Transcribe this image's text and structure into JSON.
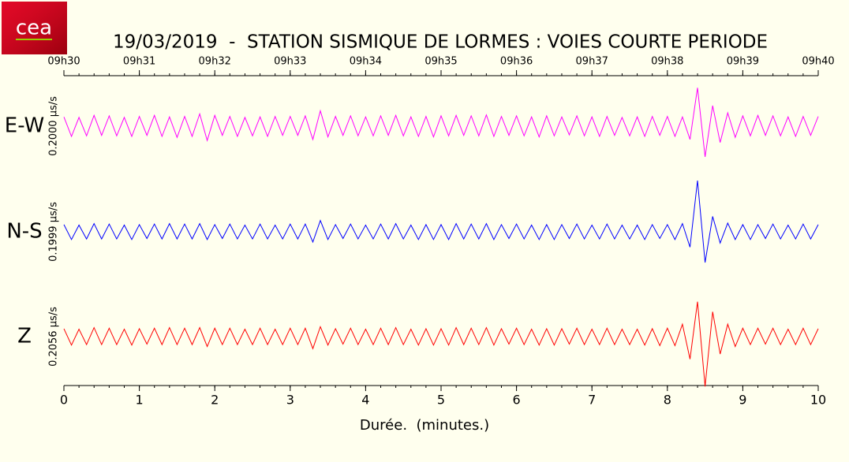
{
  "logo": "cea",
  "chart_data": {
    "type": "seismogram",
    "title": "19/03/2019  -  STATION SISMIQUE DE LORMES : VOIES COURTE PERIODE",
    "xlabel": "Durée.  (minutes.)",
    "xlim": [
      0,
      10
    ],
    "xticks": [
      0,
      1,
      2,
      3,
      4,
      5,
      6,
      7,
      8,
      9,
      10
    ],
    "xminor_step": 0.2,
    "top_ticks": [
      {
        "value": 0,
        "label": "09h30"
      },
      {
        "value": 1,
        "label": "09h31"
      },
      {
        "value": 2,
        "label": "09h32"
      },
      {
        "value": 3,
        "label": "09h33"
      },
      {
        "value": 4,
        "label": "09h34"
      },
      {
        "value": 5,
        "label": "09h35"
      },
      {
        "value": 6,
        "label": "09h36"
      },
      {
        "value": 7,
        "label": "09h37"
      },
      {
        "value": 8,
        "label": "09h38"
      },
      {
        "value": 9,
        "label": "09h39"
      },
      {
        "value": 10,
        "label": "09h40"
      }
    ],
    "x": [
      0,
      0.1,
      0.2,
      0.3,
      0.4,
      0.5,
      0.6,
      0.7,
      0.8,
      0.9,
      1,
      1.1,
      1.2,
      1.3,
      1.4,
      1.5,
      1.6,
      1.7,
      1.8,
      1.9,
      2,
      2.1,
      2.2,
      2.3,
      2.4,
      2.5,
      2.6,
      2.7,
      2.8,
      2.9,
      3,
      3.1,
      3.2,
      3.3,
      3.4,
      3.5,
      3.6,
      3.7,
      3.8,
      3.9,
      4,
      4.1,
      4.2,
      4.3,
      4.4,
      4.5,
      4.6,
      4.7,
      4.8,
      4.9,
      5,
      5.1,
      5.2,
      5.3,
      5.4,
      5.5,
      5.6,
      5.7,
      5.8,
      5.9,
      6,
      6.1,
      6.2,
      6.3,
      6.4,
      6.5,
      6.6,
      6.7,
      6.8,
      6.9,
      7,
      7.1,
      7.2,
      7.3,
      7.4,
      7.5,
      7.6,
      7.7,
      7.8,
      7.9,
      8,
      8.1,
      8.2,
      8.3,
      8.4,
      8.5,
      8.6,
      8.7,
      8.8,
      8.9,
      9,
      9.1,
      9.2,
      9.3,
      9.4,
      9.5,
      9.6,
      9.7,
      9.8,
      9.9,
      10
    ],
    "series": [
      {
        "name": "E-W",
        "scale_label": "0.2000 µs/s",
        "color": "#ff00ff",
        "ylim": [
          -0.1,
          0.1
        ],
        "values": [
          0.018,
          0.02,
          0.017,
          0.019,
          0.021,
          0.018,
          0.02,
          0.019,
          0.017,
          0.02,
          0.019,
          0.018,
          0.021,
          0.02,
          0.018,
          0.022,
          0.019,
          0.02,
          0.024,
          0.028,
          0.021,
          0.018,
          0.019,
          0.02,
          0.017,
          0.019,
          0.018,
          0.02,
          0.019,
          0.018,
          0.019,
          0.018,
          0.02,
          0.026,
          0.03,
          0.021,
          0.019,
          0.018,
          0.02,
          0.019,
          0.018,
          0.019,
          0.02,
          0.018,
          0.021,
          0.019,
          0.018,
          0.02,
          0.019,
          0.021,
          0.02,
          0.019,
          0.021,
          0.018,
          0.02,
          0.019,
          0.022,
          0.02,
          0.019,
          0.018,
          0.02,
          0.019,
          0.018,
          0.021,
          0.02,
          0.019,
          0.018,
          0.017,
          0.02,
          0.019,
          0.018,
          0.02,
          0.019,
          0.018,
          0.017,
          0.019,
          0.018,
          0.02,
          0.019,
          0.018,
          0.019,
          0.02,
          0.018,
          0.026,
          0.075,
          0.06,
          0.04,
          0.032,
          0.026,
          0.022,
          0.02,
          0.019,
          0.021,
          0.018,
          0.02,
          0.019,
          0.018,
          0.02,
          0.019,
          0.018,
          0.019
        ]
      },
      {
        "name": "N-S",
        "scale_label": "0.1999 µs/s",
        "color": "#0000ff",
        "ylim": [
          -0.09995,
          0.09995
        ],
        "values": [
          0.014,
          0.015,
          0.013,
          0.014,
          0.016,
          0.014,
          0.015,
          0.014,
          0.013,
          0.015,
          0.014,
          0.013,
          0.015,
          0.014,
          0.016,
          0.014,
          0.015,
          0.014,
          0.016,
          0.015,
          0.014,
          0.013,
          0.015,
          0.014,
          0.013,
          0.014,
          0.015,
          0.014,
          0.013,
          0.014,
          0.015,
          0.014,
          0.015,
          0.02,
          0.022,
          0.015,
          0.014,
          0.013,
          0.015,
          0.014,
          0.013,
          0.014,
          0.015,
          0.014,
          0.016,
          0.014,
          0.013,
          0.015,
          0.014,
          0.015,
          0.014,
          0.015,
          0.016,
          0.014,
          0.015,
          0.014,
          0.016,
          0.015,
          0.014,
          0.013,
          0.015,
          0.014,
          0.013,
          0.015,
          0.014,
          0.015,
          0.014,
          0.013,
          0.015,
          0.014,
          0.013,
          0.014,
          0.015,
          0.014,
          0.013,
          0.014,
          0.013,
          0.015,
          0.014,
          0.013,
          0.014,
          0.015,
          0.016,
          0.03,
          0.1,
          0.06,
          0.03,
          0.022,
          0.017,
          0.015,
          0.014,
          0.015,
          0.014,
          0.013,
          0.015,
          0.014,
          0.013,
          0.014,
          0.015,
          0.014,
          0.014
        ]
      },
      {
        "name": "Z",
        "scale_label": "0.2056 µs/s",
        "color": "#ff0000",
        "ylim": [
          -0.1028,
          0.1028
        ],
        "values": [
          0.016,
          0.017,
          0.015,
          0.016,
          0.018,
          0.016,
          0.017,
          0.016,
          0.015,
          0.017,
          0.016,
          0.015,
          0.017,
          0.016,
          0.018,
          0.016,
          0.017,
          0.016,
          0.018,
          0.02,
          0.017,
          0.016,
          0.017,
          0.016,
          0.015,
          0.016,
          0.017,
          0.016,
          0.015,
          0.016,
          0.017,
          0.016,
          0.017,
          0.024,
          0.02,
          0.017,
          0.016,
          0.015,
          0.017,
          0.016,
          0.015,
          0.016,
          0.017,
          0.016,
          0.018,
          0.016,
          0.015,
          0.017,
          0.016,
          0.017,
          0.016,
          0.017,
          0.018,
          0.016,
          0.017,
          0.016,
          0.018,
          0.017,
          0.016,
          0.015,
          0.017,
          0.016,
          0.015,
          0.017,
          0.016,
          0.017,
          0.016,
          0.015,
          0.017,
          0.016,
          0.015,
          0.016,
          0.017,
          0.016,
          0.015,
          0.016,
          0.015,
          0.017,
          0.016,
          0.018,
          0.017,
          0.018,
          0.025,
          0.045,
          0.07,
          0.1,
          0.05,
          0.035,
          0.025,
          0.02,
          0.017,
          0.016,
          0.017,
          0.015,
          0.017,
          0.016,
          0.015,
          0.016,
          0.017,
          0.016,
          0.016
        ]
      }
    ]
  }
}
